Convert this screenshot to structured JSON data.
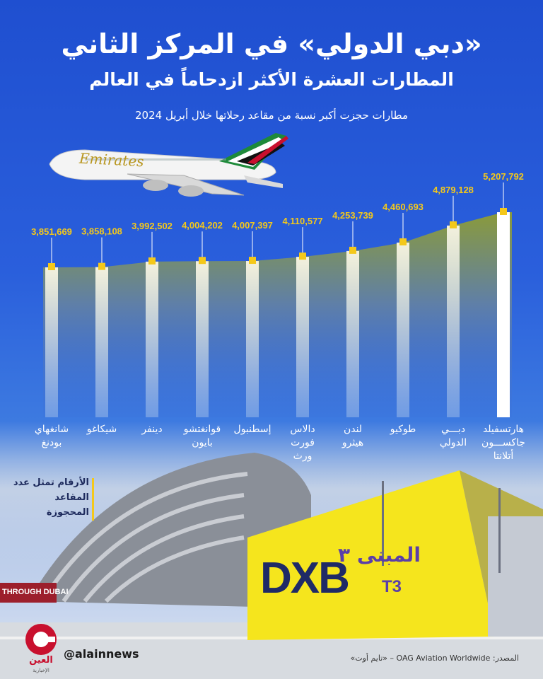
{
  "header": {
    "title": "«دبي الدولي» في المركز الثاني",
    "subtitle_line": "المطارات العشرة الأكثر ازدحاماً في العالم",
    "description": "مطارات حجزت أكبر نسبة من مقاعد رحلاتها خلال أبريل 2024"
  },
  "chart_data": {
    "type": "bar",
    "categories": [
      "شانغهاي بودنغ",
      "شيكاغو",
      "دينفر",
      "قوانغتشو بايون",
      "إسطنبول",
      "دالاس فورت ورث",
      "لندن هيثرو",
      "طوكيو",
      "دبي الدولي",
      "هارتسفيلد جاكسون أتلانتا"
    ],
    "category_lines": [
      [
        "شانغهاي",
        "بودنغ"
      ],
      [
        "شيكاغو"
      ],
      [
        "دينفر"
      ],
      [
        "قوانغتشو",
        "بايون"
      ],
      [
        "إسطنبول"
      ],
      [
        "دالاس",
        "فورت",
        "ورث"
      ],
      [
        "لندن",
        "هيثرو"
      ],
      [
        "طوكيو"
      ],
      [
        "دبـــي",
        "الدولي"
      ],
      [
        "هارتسفيلد",
        "جاكســـون",
        "أتلانتا"
      ]
    ],
    "values": [
      3851669,
      3858108,
      3992502,
      4004202,
      4007397,
      4110577,
      4253739,
      4460693,
      4879128,
      5207792
    ],
    "value_labels": [
      "3,851,669",
      "3,858,108",
      "3,992,502",
      "4,004,202",
      "4,007,397",
      "4,110,577",
      "4,253,739",
      "4,460,693",
      "4,879,128",
      "5,207,792"
    ],
    "accent_color": "#f4c81a",
    "highlight_color": "#ffffff"
  },
  "legend_note": "الأرقام تمثل عدد المقاعد المحجوزة",
  "footer": {
    "handle": "@alainnews",
    "source": "المصدر: OAG Aviation Worldwide – «تايم أوت»",
    "logo_text": "العين",
    "logo_sub": "الإخبارية"
  },
  "photo": {
    "sign_text": "DXB",
    "terminal_arabic": "المبنى ٣",
    "terminal_code": "T3",
    "banner_text": "THROUGH DUBAI"
  },
  "plane": {
    "livery_text": "Emirates"
  }
}
